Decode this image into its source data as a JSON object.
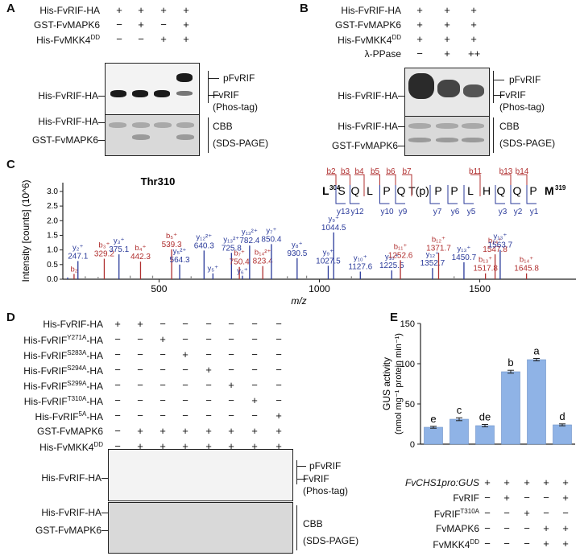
{
  "panelA": {
    "letter": "A",
    "rows": [
      {
        "label": "His-FvRIF-HA",
        "signs": [
          "+",
          "+",
          "+",
          "+"
        ]
      },
      {
        "label": "GST-FvMAPK6",
        "signs": [
          "−",
          "+",
          "−",
          "+"
        ]
      },
      {
        "label": "His-FvMKK4",
        "sup": "DD",
        "signs": [
          "−",
          "−",
          "+",
          "+"
        ]
      }
    ],
    "blot_left_label": "His-FvRIF-HA",
    "right_labels": {
      "p": "pFvRIF",
      "u": "FvRIF",
      "tag": "(Phos-tag)"
    },
    "cbb_left_labels": [
      "His-FvRIF-HA",
      "GST-FvMAPK6"
    ],
    "cbb_right": [
      "CBB",
      "(SDS-PAGE)"
    ]
  },
  "panelB": {
    "letter": "B",
    "rows": [
      {
        "label": "His-FvRIF-HA",
        "signs": [
          "+",
          "+",
          "+"
        ]
      },
      {
        "label": "GST-FvMAPK6",
        "signs": [
          "+",
          "+",
          "+"
        ]
      },
      {
        "label": "His-FvMKK4",
        "sup": "DD",
        "signs": [
          "+",
          "+",
          "+"
        ]
      },
      {
        "label": "λ-PPase",
        "signs": [
          "−",
          "+",
          "++"
        ]
      }
    ],
    "blot_left_label": "His-FvRIF-HA",
    "right_labels": {
      "p": "pFvRIF",
      "u": "FvRIF",
      "tag": "(Phos-tag)"
    },
    "cbb_left_labels": [
      "His-FvRIF-HA",
      "GST-FvMAPK6"
    ],
    "cbb_right": [
      "CBB",
      "(SDS-PAGE)"
    ]
  },
  "panelC": {
    "letter": "C",
    "title": "Thr310",
    "peptide": {
      "start": "L",
      "start_sup": "304",
      "end": "M",
      "end_sup": "319",
      "residues": [
        "S",
        "Q",
        "L",
        "P",
        "Q",
        "T(p)",
        "P",
        "P",
        "L",
        "H",
        "Q",
        "Q",
        "P"
      ],
      "b_ions": [
        "b2",
        "b3",
        "b4",
        "b5",
        "b6",
        "b7",
        "b11",
        "b13",
        "b14"
      ],
      "y_ions": [
        "y13",
        "y12",
        "y10",
        "y9",
        "y7",
        "y6",
        "y5",
        "y3",
        "y2",
        "y1"
      ]
    }
  },
  "chart_data": [
    {
      "type": "spectrum",
      "title": "Thr310",
      "xlabel": "m/z",
      "ylabel": "Intensity [counts] (10^6)",
      "xlim": [
        200,
        1800
      ],
      "ylim": [
        0,
        3.3
      ],
      "xticks": [
        "500",
        "1000",
        "1500"
      ],
      "yticks": [
        "0.0",
        "0.5",
        "1.0",
        "1.5",
        "2.0",
        "2.5",
        "3.0"
      ],
      "peaks": [
        {
          "mz": 215,
          "h": 0.06,
          "ion": "y",
          "label": ""
        },
        {
          "mz": 235,
          "h": 0.18,
          "ion": "b",
          "label": "b₂"
        },
        {
          "mz": 247.1,
          "h": 0.62,
          "ion": "y",
          "label": "y₂⁺ 247.1"
        },
        {
          "mz": 270,
          "h": 0.1,
          "ion": "g",
          "label": ""
        },
        {
          "mz": 310,
          "h": 0.08,
          "ion": "g",
          "label": ""
        },
        {
          "mz": 329.2,
          "h": 0.7,
          "ion": "b",
          "label": "b₃⁺ 329.2"
        },
        {
          "mz": 375.1,
          "h": 0.85,
          "ion": "y",
          "label": "y₃⁺ 375.1"
        },
        {
          "mz": 410,
          "h": 0.12,
          "ion": "g",
          "label": ""
        },
        {
          "mz": 442.3,
          "h": 0.6,
          "ion": "b",
          "label": "b₄⁺ 442.3"
        },
        {
          "mz": 480,
          "h": 0.12,
          "ion": "g",
          "label": ""
        },
        {
          "mz": 539.3,
          "h": 1.02,
          "ion": "b",
          "label": "b₅⁺ 539.3"
        },
        {
          "mz": 564.3,
          "h": 0.5,
          "ion": "y",
          "label": "y₅²⁺ 564.3"
        },
        {
          "mz": 600,
          "h": 0.1,
          "ion": "g",
          "label": ""
        },
        {
          "mz": 640.3,
          "h": 0.98,
          "ion": "y",
          "label": "y₁₂²⁺ 640.3"
        },
        {
          "mz": 668,
          "h": 0.2,
          "ion": "y",
          "label": "y₅⁺"
        },
        {
          "mz": 725.8,
          "h": 0.9,
          "ion": "y",
          "label": "y₁₃²⁺ 725.8"
        },
        {
          "mz": 750.4,
          "h": 0.42,
          "ion": "b",
          "label": "b₇⁺ 750.4"
        },
        {
          "mz": 760,
          "h": 0.12,
          "ion": "y",
          "label": "y₆⁺"
        },
        {
          "mz": 782.4,
          "h": 1.15,
          "ion": "y",
          "label": "y₁₃²⁺ 782.4"
        },
        {
          "mz": 823.4,
          "h": 0.45,
          "ion": "b",
          "label": "b₁₄²⁺ 823.4"
        },
        {
          "mz": 850.4,
          "h": 1.2,
          "ion": "y",
          "label": "y₇⁺ 850.4"
        },
        {
          "mz": 900,
          "h": 0.1,
          "ion": "g",
          "label": ""
        },
        {
          "mz": 930.5,
          "h": 0.72,
          "ion": "y",
          "label": "y₈⁺ 930.5"
        },
        {
          "mz": 960,
          "h": 0.12,
          "ion": "g",
          "label": ""
        },
        {
          "mz": 1027.5,
          "h": 0.46,
          "ion": "y",
          "label": "y₉⁺ 1027.5"
        },
        {
          "mz": 1044.5,
          "h": 1.6,
          "ion": "y",
          "label": "y₉⁺ 1044.5"
        },
        {
          "mz": 1100,
          "h": 0.1,
          "ion": "g",
          "label": ""
        },
        {
          "mz": 1127.6,
          "h": 0.26,
          "ion": "y",
          "label": "y₁₀⁺ 1127.6"
        },
        {
          "mz": 1225.5,
          "h": 0.3,
          "ion": "y",
          "label": "y₁₀⁺ 1225.5"
        },
        {
          "mz": 1252.6,
          "h": 0.65,
          "ion": "b",
          "label": "b₁₁⁺ 1252.6"
        },
        {
          "mz": 1352.7,
          "h": 0.38,
          "ion": "y",
          "label": "y₁₂⁺ 1352.7"
        },
        {
          "mz": 1371.7,
          "h": 0.9,
          "ion": "b",
          "label": "b₁₂⁺ 1371.7"
        },
        {
          "mz": 1420,
          "h": 0.1,
          "ion": "g",
          "label": ""
        },
        {
          "mz": 1450.7,
          "h": 0.58,
          "ion": "y",
          "label": "y₁₃⁺ 1450.7"
        },
        {
          "mz": 1517.8,
          "h": 0.2,
          "ion": "b",
          "label": "b₁₃⁺ 1517.8"
        },
        {
          "mz": 1547.8,
          "h": 0.85,
          "ion": "b",
          "label": "b₁₄⁺ 1547.8"
        },
        {
          "mz": 1563.7,
          "h": 1.0,
          "ion": "y",
          "label": "y₁₃⁺ 1563.7"
        },
        {
          "mz": 1645.8,
          "h": 0.2,
          "ion": "b",
          "label": "b₁₄⁺ 1645.8"
        }
      ],
      "colors": {
        "b": "#b03030",
        "y": "#2a3a9a",
        "g": "#888888"
      }
    },
    {
      "type": "bar",
      "title": "",
      "ylabel": "GUS activity",
      "ylabel2": "(nmol mg⁻¹ protein min⁻¹)",
      "ylim": [
        0,
        150
      ],
      "yticks": [
        "0",
        "50",
        "100",
        "150"
      ],
      "values": [
        21,
        31,
        23,
        90,
        105,
        24
      ],
      "errors": [
        1.2,
        1.8,
        1.5,
        1.8,
        1.5,
        1.2
      ],
      "letters": [
        "e",
        "c",
        "de",
        "b",
        "a",
        "d"
      ],
      "bar_color": "#8fb3e6"
    }
  ],
  "panelD": {
    "letter": "D",
    "rows": [
      {
        "label": "His-FvRIF-HA",
        "sup": "",
        "suffix": "",
        "signs": [
          "+",
          "+",
          "−",
          "−",
          "−",
          "−",
          "−",
          "−"
        ]
      },
      {
        "label": "His-FvRIF",
        "sup": "Y271A",
        "suffix": "-HA",
        "signs": [
          "−",
          "−",
          "+",
          "−",
          "−",
          "−",
          "−",
          "−"
        ]
      },
      {
        "label": "His-FvRIF",
        "sup": "S283A",
        "suffix": "-HA",
        "signs": [
          "−",
          "−",
          "−",
          "+",
          "−",
          "−",
          "−",
          "−"
        ]
      },
      {
        "label": "His-FvRIF",
        "sup": "S294A",
        "suffix": "-HA",
        "signs": [
          "−",
          "−",
          "−",
          "−",
          "+",
          "−",
          "−",
          "−"
        ]
      },
      {
        "label": "His-FvRIF",
        "sup": "S299A",
        "suffix": "-HA",
        "signs": [
          "−",
          "−",
          "−",
          "−",
          "−",
          "+",
          "−",
          "−"
        ]
      },
      {
        "label": "His-FvRIF",
        "sup": "T310A",
        "suffix": "-HA",
        "signs": [
          "−",
          "−",
          "−",
          "−",
          "−",
          "−",
          "+",
          "−"
        ]
      },
      {
        "label": "His-FvRIF",
        "sup": "5A",
        "suffix": "-HA",
        "signs": [
          "−",
          "−",
          "−",
          "−",
          "−",
          "−",
          "−",
          "+"
        ]
      },
      {
        "label": "GST-FvMAPK6",
        "sup": "",
        "suffix": "",
        "signs": [
          "−",
          "+",
          "+",
          "+",
          "+",
          "+",
          "+",
          "+"
        ]
      },
      {
        "label": "His-FvMKK4",
        "sup": "DD",
        "suffix": "",
        "signs": [
          "−",
          "+",
          "+",
          "+",
          "+",
          "+",
          "+",
          "+"
        ]
      }
    ],
    "blot_left_label": "His-FvRIF-HA",
    "right_labels": {
      "p": "pFvRIF",
      "u": "FvRIF",
      "tag": "(Phos-tag)"
    },
    "cbb_left_labels": [
      "His-FvRIF-HA",
      "GST-FvMAPK6"
    ],
    "cbb_right": [
      "CBB",
      "(SDS-PAGE)"
    ]
  },
  "panelE": {
    "letter": "E",
    "rows": [
      {
        "label": "FvCHS1pro:GUS",
        "italic": true,
        "sup": "",
        "signs": [
          "+",
          "+",
          "+",
          "+",
          "+",
          "+"
        ]
      },
      {
        "label": "FvRIF",
        "italic": false,
        "sup": "",
        "signs": [
          "−",
          "+",
          "−",
          "−",
          "+",
          "−"
        ]
      },
      {
        "label": "FvRIF",
        "italic": false,
        "sup": "T310A",
        "signs": [
          "−",
          "−",
          "+",
          "−",
          "−",
          "+"
        ]
      },
      {
        "label": "FvMAPK6",
        "italic": false,
        "sup": "",
        "signs": [
          "−",
          "−",
          "−",
          "+",
          "+",
          "+"
        ]
      },
      {
        "label": "FvMKK4",
        "italic": false,
        "sup": "DD",
        "signs": [
          "−",
          "−",
          "−",
          "+",
          "+",
          "+"
        ]
      }
    ]
  }
}
